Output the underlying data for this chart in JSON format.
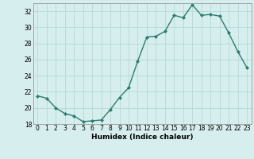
{
  "x": [
    0,
    1,
    2,
    3,
    4,
    5,
    6,
    7,
    8,
    9,
    10,
    11,
    12,
    13,
    14,
    15,
    16,
    17,
    18,
    19,
    20,
    21,
    22,
    23
  ],
  "y": [
    21.5,
    21.2,
    20.0,
    19.3,
    19.0,
    18.3,
    18.4,
    18.5,
    19.8,
    21.3,
    22.5,
    25.8,
    28.8,
    28.9,
    29.5,
    31.5,
    31.2,
    32.8,
    31.5,
    31.6,
    31.4,
    29.3,
    27.0,
    25.0
  ],
  "xlabel": "Humidex (Indice chaleur)",
  "line_color": "#2d7d6e",
  "marker": "D",
  "marker_size": 2,
  "line_width": 1.0,
  "background_color": "#d6eeee",
  "grid_color": "#b8d8d8",
  "ylim": [
    18,
    33
  ],
  "xlim": [
    -0.5,
    23.5
  ],
  "yticks": [
    18,
    20,
    22,
    24,
    26,
    28,
    30,
    32
  ],
  "xticks": [
    0,
    1,
    2,
    3,
    4,
    5,
    6,
    7,
    8,
    9,
    10,
    11,
    12,
    13,
    14,
    15,
    16,
    17,
    18,
    19,
    20,
    21,
    22,
    23
  ],
  "tick_fontsize": 5.5,
  "xlabel_fontsize": 6.5
}
